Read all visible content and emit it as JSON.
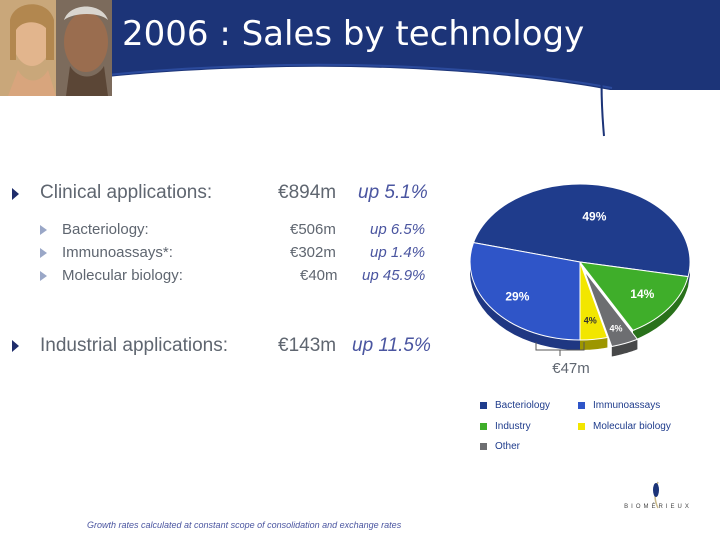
{
  "title": "2006 : Sales by technology",
  "sections": [
    {
      "label": "Clinical applications:",
      "value": "€894m",
      "growth": "up 5.1%",
      "items": [
        {
          "label": "Bacteriology:",
          "value": "€506m",
          "growth": "up 6.5%"
        },
        {
          "label": "Immunoassays*:",
          "value": "€302m",
          "growth": "up 1.4%"
        },
        {
          "label": "Molecular biology:",
          "value": "€40m",
          "growth": "up 45.9%"
        }
      ]
    },
    {
      "label": "Industrial applications:",
      "value": "€143m",
      "growth": "up 11.5%"
    }
  ],
  "chart_data": {
    "type": "pie",
    "slices": [
      {
        "name": "Bacteriology",
        "value": 49,
        "label": "49%",
        "color": "#1f3c8c"
      },
      {
        "name": "Industry",
        "value": 14,
        "label": "14%",
        "color": "#3fae2a"
      },
      {
        "name": "Other",
        "value": 4,
        "label": "4%",
        "color": "#6d6e71"
      },
      {
        "name": "Molecular biology",
        "value": 4,
        "label": "4%",
        "color": "#f2e600"
      },
      {
        "name": "Immunoassays",
        "value": 29,
        "label": "29%",
        "color": "#2f55c8"
      }
    ],
    "callout": "€47m",
    "legend": [
      "Bacteriology",
      "Immunoassays",
      "Industry",
      "Molecular biology",
      "Other"
    ]
  },
  "footnote": "Growth rates calculated at constant scope of consolidation and exchange rates",
  "logo_text": "BIOMÉRIEUX",
  "colors": {
    "header": "#1c3478",
    "accent": "#4a55a0"
  }
}
